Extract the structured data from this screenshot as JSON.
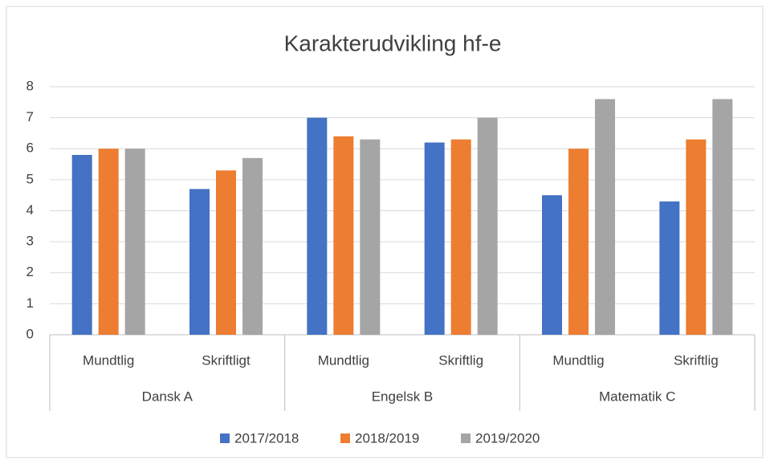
{
  "chart_data": {
    "type": "bar",
    "title": "Karakterudvikling hf-e",
    "categories": [
      "Mundtlig",
      "Skriftligt",
      "Mundtlig",
      "Skriftlig",
      "Mundtlig",
      "Skriftlig"
    ],
    "category_groups": [
      "Dansk A",
      "Engelsk B",
      "Matematik C"
    ],
    "series": [
      {
        "name": "2017/2018",
        "color": "#4472c4",
        "values": [
          5.8,
          4.7,
          7.0,
          6.2,
          4.5,
          4.3
        ]
      },
      {
        "name": "2018/2019",
        "color": "#ed7d31",
        "values": [
          6.0,
          5.3,
          6.4,
          6.3,
          6.0,
          6.3
        ]
      },
      {
        "name": "2019/2020",
        "color": "#a5a5a5",
        "values": [
          6.0,
          5.7,
          6.3,
          7.0,
          7.6,
          7.6
        ]
      }
    ],
    "ylim": [
      0,
      8
    ],
    "yticks": [
      0,
      1,
      2,
      3,
      4,
      5,
      6,
      7,
      8
    ],
    "grid": true,
    "legend": "bottom"
  }
}
